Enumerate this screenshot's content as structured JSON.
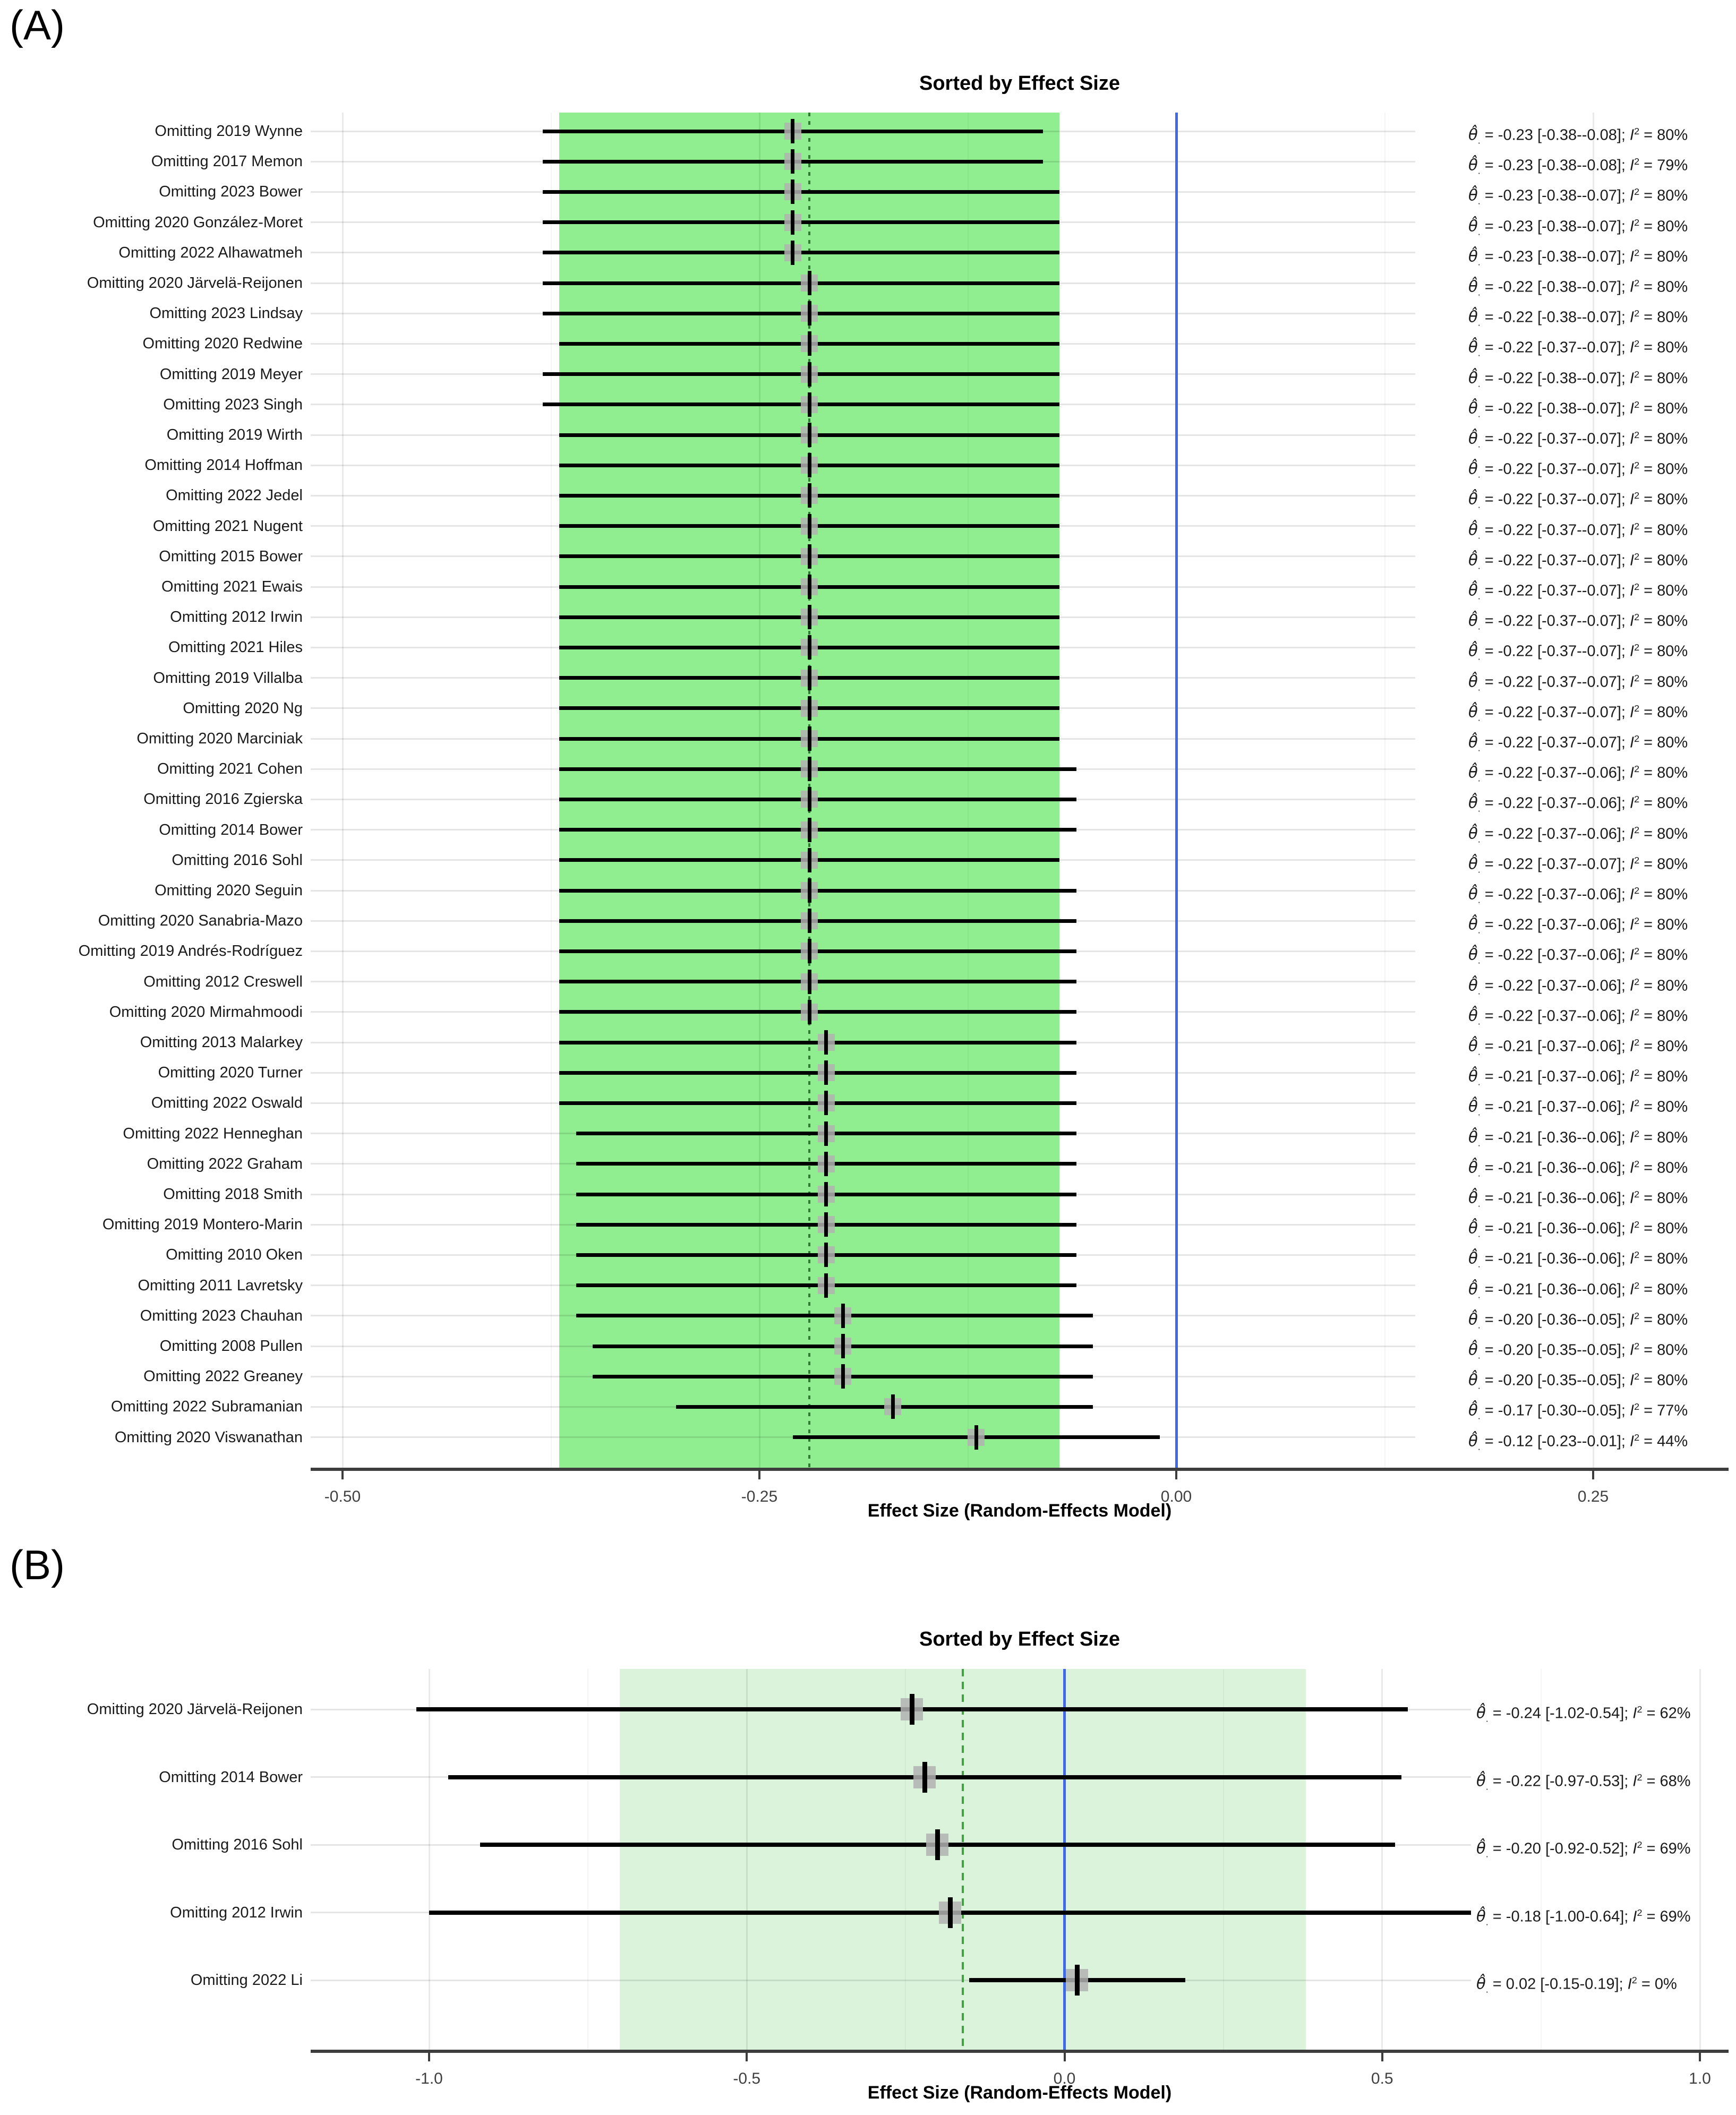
{
  "figure": {
    "background": "#ffffff",
    "colors": {
      "pooled_band_panel_a": "#90EE90",
      "pooled_band_panel_b": "#DBF3DB",
      "zero_line_blue": "#4169E1",
      "pooled_dotted_line_a": "#2E7D32",
      "pooled_dashed_line_b": "#43A047",
      "ci_line": "#000000",
      "marker_fill": "#B2B2B2",
      "marker_cross": "#000000",
      "gridline": "#E6E6E6",
      "axis_line": "#3d3d3d"
    },
    "symbols": {
      "estimator": "θ̂",
      "estimator_subscript": ".",
      "heterogeneity_base": "I",
      "heterogeneity_sup": "2",
      "stats_format": "θ̂. = {est} [{lo}-{hi}]; I² = {i2}%"
    }
  },
  "chart_data": [
    {
      "panel": "A",
      "corner_label": "(A)",
      "type": "scatter",
      "variant": "leave-one-out-forest",
      "title": "Sorted by Effect Size",
      "xlabel": "Effect Size (Random-Effects Model)",
      "x_ticks": [
        -0.5,
        -0.25,
        0.0,
        0.25
      ],
      "x_tick_labels": [
        "-0.50",
        "-0.25",
        "0.00",
        "0.25"
      ],
      "x_minor_ticks": [
        -0.375,
        -0.125,
        0.125
      ],
      "xlim": [
        -0.52,
        0.33
      ],
      "grid": true,
      "legend": "none",
      "zero_line": 0,
      "pooled_estimate": -0.22,
      "pooled_ci": [
        -0.37,
        -0.07
      ],
      "studies": [
        {
          "label": "Omitting 2019 Wynne",
          "est": -0.23,
          "lo": -0.38,
          "hi": -0.08,
          "i2": 80
        },
        {
          "label": "Omitting 2017 Memon",
          "est": -0.23,
          "lo": -0.38,
          "hi": -0.08,
          "i2": 79
        },
        {
          "label": "Omitting 2023 Bower",
          "est": -0.23,
          "lo": -0.38,
          "hi": -0.07,
          "i2": 80
        },
        {
          "label": "Omitting 2020 González-Moret",
          "est": -0.23,
          "lo": -0.38,
          "hi": -0.07,
          "i2": 80
        },
        {
          "label": "Omitting 2022 Alhawatmeh",
          "est": -0.23,
          "lo": -0.38,
          "hi": -0.07,
          "i2": 80
        },
        {
          "label": "Omitting 2020 Järvelä-Reijonen",
          "est": -0.22,
          "lo": -0.38,
          "hi": -0.07,
          "i2": 80
        },
        {
          "label": "Omitting 2023 Lindsay",
          "est": -0.22,
          "lo": -0.38,
          "hi": -0.07,
          "i2": 80
        },
        {
          "label": "Omitting 2020 Redwine",
          "est": -0.22,
          "lo": -0.37,
          "hi": -0.07,
          "i2": 80
        },
        {
          "label": "Omitting 2019 Meyer",
          "est": -0.22,
          "lo": -0.38,
          "hi": -0.07,
          "i2": 80
        },
        {
          "label": "Omitting 2023 Singh",
          "est": -0.22,
          "lo": -0.38,
          "hi": -0.07,
          "i2": 80
        },
        {
          "label": "Omitting 2019 Wirth",
          "est": -0.22,
          "lo": -0.37,
          "hi": -0.07,
          "i2": 80
        },
        {
          "label": "Omitting 2014 Hoffman",
          "est": -0.22,
          "lo": -0.37,
          "hi": -0.07,
          "i2": 80
        },
        {
          "label": "Omitting 2022 Jedel",
          "est": -0.22,
          "lo": -0.37,
          "hi": -0.07,
          "i2": 80
        },
        {
          "label": "Omitting 2021 Nugent",
          "est": -0.22,
          "lo": -0.37,
          "hi": -0.07,
          "i2": 80
        },
        {
          "label": "Omitting 2015 Bower",
          "est": -0.22,
          "lo": -0.37,
          "hi": -0.07,
          "i2": 80
        },
        {
          "label": "Omitting 2021 Ewais",
          "est": -0.22,
          "lo": -0.37,
          "hi": -0.07,
          "i2": 80
        },
        {
          "label": "Omitting 2012 Irwin",
          "est": -0.22,
          "lo": -0.37,
          "hi": -0.07,
          "i2": 80
        },
        {
          "label": "Omitting 2021 Hiles",
          "est": -0.22,
          "lo": -0.37,
          "hi": -0.07,
          "i2": 80
        },
        {
          "label": "Omitting 2019 Villalba",
          "est": -0.22,
          "lo": -0.37,
          "hi": -0.07,
          "i2": 80
        },
        {
          "label": "Omitting 2020 Ng",
          "est": -0.22,
          "lo": -0.37,
          "hi": -0.07,
          "i2": 80
        },
        {
          "label": "Omitting 2020 Marciniak",
          "est": -0.22,
          "lo": -0.37,
          "hi": -0.07,
          "i2": 80
        },
        {
          "label": "Omitting 2021 Cohen",
          "est": -0.22,
          "lo": -0.37,
          "hi": -0.06,
          "i2": 80
        },
        {
          "label": "Omitting 2016 Zgierska",
          "est": -0.22,
          "lo": -0.37,
          "hi": -0.06,
          "i2": 80
        },
        {
          "label": "Omitting 2014 Bower",
          "est": -0.22,
          "lo": -0.37,
          "hi": -0.06,
          "i2": 80
        },
        {
          "label": "Omitting 2016 Sohl",
          "est": -0.22,
          "lo": -0.37,
          "hi": -0.07,
          "i2": 80
        },
        {
          "label": "Omitting 2020 Seguin",
          "est": -0.22,
          "lo": -0.37,
          "hi": -0.06,
          "i2": 80
        },
        {
          "label": "Omitting 2020 Sanabria-Mazo",
          "est": -0.22,
          "lo": -0.37,
          "hi": -0.06,
          "i2": 80
        },
        {
          "label": "Omitting 2019 Andrés-Rodríguez",
          "est": -0.22,
          "lo": -0.37,
          "hi": -0.06,
          "i2": 80
        },
        {
          "label": "Omitting 2012 Creswell",
          "est": -0.22,
          "lo": -0.37,
          "hi": -0.06,
          "i2": 80
        },
        {
          "label": "Omitting 2020 Mirmahmoodi",
          "est": -0.22,
          "lo": -0.37,
          "hi": -0.06,
          "i2": 80
        },
        {
          "label": "Omitting 2013 Malarkey",
          "est": -0.21,
          "lo": -0.37,
          "hi": -0.06,
          "i2": 80
        },
        {
          "label": "Omitting 2020 Turner",
          "est": -0.21,
          "lo": -0.37,
          "hi": -0.06,
          "i2": 80
        },
        {
          "label": "Omitting 2022 Oswald",
          "est": -0.21,
          "lo": -0.37,
          "hi": -0.06,
          "i2": 80
        },
        {
          "label": "Omitting 2022 Henneghan",
          "est": -0.21,
          "lo": -0.36,
          "hi": -0.06,
          "i2": 80
        },
        {
          "label": "Omitting 2022 Graham",
          "est": -0.21,
          "lo": -0.36,
          "hi": -0.06,
          "i2": 80
        },
        {
          "label": "Omitting 2018 Smith",
          "est": -0.21,
          "lo": -0.36,
          "hi": -0.06,
          "i2": 80
        },
        {
          "label": "Omitting 2019 Montero-Marin",
          "est": -0.21,
          "lo": -0.36,
          "hi": -0.06,
          "i2": 80
        },
        {
          "label": "Omitting 2010 Oken",
          "est": -0.21,
          "lo": -0.36,
          "hi": -0.06,
          "i2": 80
        },
        {
          "label": "Omitting 2011 Lavretsky",
          "est": -0.21,
          "lo": -0.36,
          "hi": -0.06,
          "i2": 80
        },
        {
          "label": "Omitting 2023 Chauhan",
          "est": -0.2,
          "lo": -0.36,
          "hi": -0.05,
          "i2": 80
        },
        {
          "label": "Omitting 2008 Pullen",
          "est": -0.2,
          "lo": -0.35,
          "hi": -0.05,
          "i2": 80
        },
        {
          "label": "Omitting 2022 Greaney",
          "est": -0.2,
          "lo": -0.35,
          "hi": -0.05,
          "i2": 80
        },
        {
          "label": "Omitting 2022 Subramanian",
          "est": -0.17,
          "lo": -0.3,
          "hi": -0.05,
          "i2": 77
        },
        {
          "label": "Omitting 2020 Viswanathan",
          "est": -0.12,
          "lo": -0.23,
          "hi": -0.01,
          "i2": 44
        }
      ]
    },
    {
      "panel": "B",
      "corner_label": "(B)",
      "type": "scatter",
      "variant": "leave-one-out-forest",
      "title": "Sorted by Effect Size",
      "xlabel": "Effect Size (Random-Effects Model)",
      "x_ticks": [
        -1.0,
        -0.5,
        0.0,
        0.5,
        1.0
      ],
      "x_tick_labels": [
        "-1.0",
        "-0.5",
        "0.0",
        "0.5",
        "1.0"
      ],
      "x_minor_ticks": [
        -0.75,
        -0.25,
        0.25,
        0.75
      ],
      "xlim": [
        -1.19,
        1.05
      ],
      "grid": true,
      "legend": "none",
      "zero_line": 0,
      "pooled_estimate": -0.16,
      "pooled_ci": [
        -0.7,
        0.38
      ],
      "studies": [
        {
          "label": "Omitting 2020 Järvelä-Reijonen",
          "est": -0.24,
          "lo": -1.02,
          "hi": 0.54,
          "i2": 62
        },
        {
          "label": "Omitting 2014 Bower",
          "est": -0.22,
          "lo": -0.97,
          "hi": 0.53,
          "i2": 68
        },
        {
          "label": "Omitting 2016 Sohl",
          "est": -0.2,
          "lo": -0.92,
          "hi": 0.52,
          "i2": 69
        },
        {
          "label": "Omitting 2012 Irwin",
          "est": -0.18,
          "lo": -1.0,
          "hi": 0.64,
          "i2": 69
        },
        {
          "label": "Omitting 2022 Li",
          "est": 0.02,
          "lo": -0.15,
          "hi": 0.19,
          "i2": 0
        }
      ]
    }
  ]
}
